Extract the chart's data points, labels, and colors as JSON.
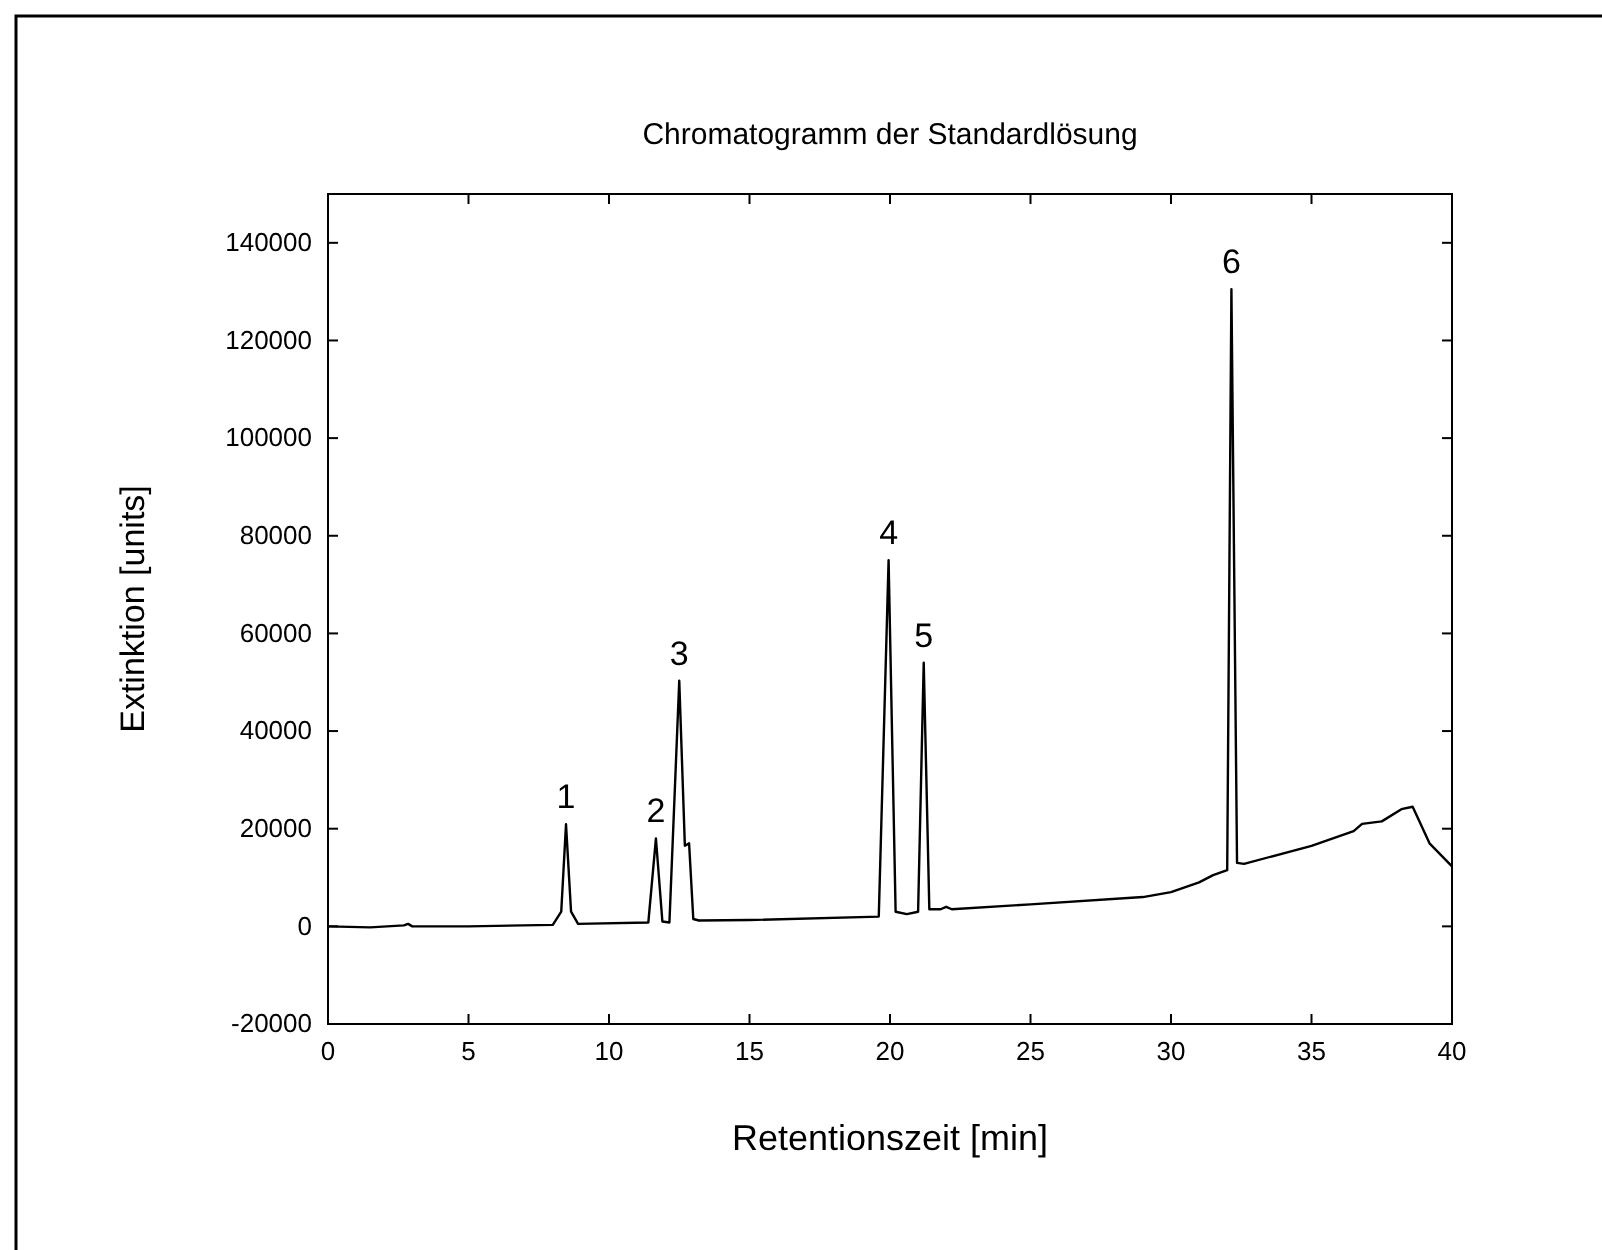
{
  "chart_data": {
    "type": "line",
    "title": "Chromatogramm der Standardlösung",
    "xlabel": "Retentionszeit [min]",
    "ylabel": "Extinktion [units]",
    "xlim": [
      0,
      40
    ],
    "xticks": [
      0,
      5,
      10,
      15,
      20,
      25,
      30,
      35,
      40
    ],
    "ylim": [
      -20000,
      150000
    ],
    "yticks": [
      -20000,
      0,
      20000,
      40000,
      60000,
      80000,
      100000,
      120000,
      140000
    ],
    "grid": false,
    "series": [
      {
        "color": "#000000",
        "x": [
          0,
          1.5,
          2.7,
          2.85,
          3,
          5,
          8,
          8.3,
          8.47,
          8.65,
          8.9,
          11.4,
          11.67,
          11.9,
          12.15,
          12.5,
          12.7,
          12.85,
          13.0,
          13.2,
          15,
          19.6,
          19.95,
          20.2,
          20.6,
          21.0,
          21.2,
          21.4,
          21.8,
          22.0,
          22.2,
          25,
          29,
          30,
          31,
          31.5,
          32.0,
          32.15,
          32.35,
          32.6,
          35,
          36.5,
          36.8,
          37.5,
          38.2,
          38.6,
          39.2,
          40
        ],
        "values": [
          0,
          -200,
          200,
          500,
          0,
          0,
          300,
          3000,
          20900,
          3000,
          500,
          800,
          18000,
          1000,
          800,
          50300,
          16500,
          17000,
          1500,
          1200,
          1300,
          2000,
          75000,
          3000,
          2500,
          3000,
          54000,
          3500,
          3500,
          4000,
          3500,
          4500,
          6000,
          7000,
          9000,
          10500,
          11500,
          130500,
          13000,
          12800,
          16500,
          19500,
          21000,
          21500,
          24000,
          24500,
          17000,
          12300
        ]
      }
    ],
    "annotations": [
      {
        "text": "1",
        "x": 8.47,
        "y": 20900
      },
      {
        "text": "2",
        "x": 11.67,
        "y": 18000
      },
      {
        "text": "3",
        "x": 12.5,
        "y": 50300
      },
      {
        "text": "4",
        "x": 19.95,
        "y": 75000
      },
      {
        "text": "5",
        "x": 21.2,
        "y": 54000
      },
      {
        "text": "6",
        "x": 32.15,
        "y": 130500
      }
    ]
  }
}
